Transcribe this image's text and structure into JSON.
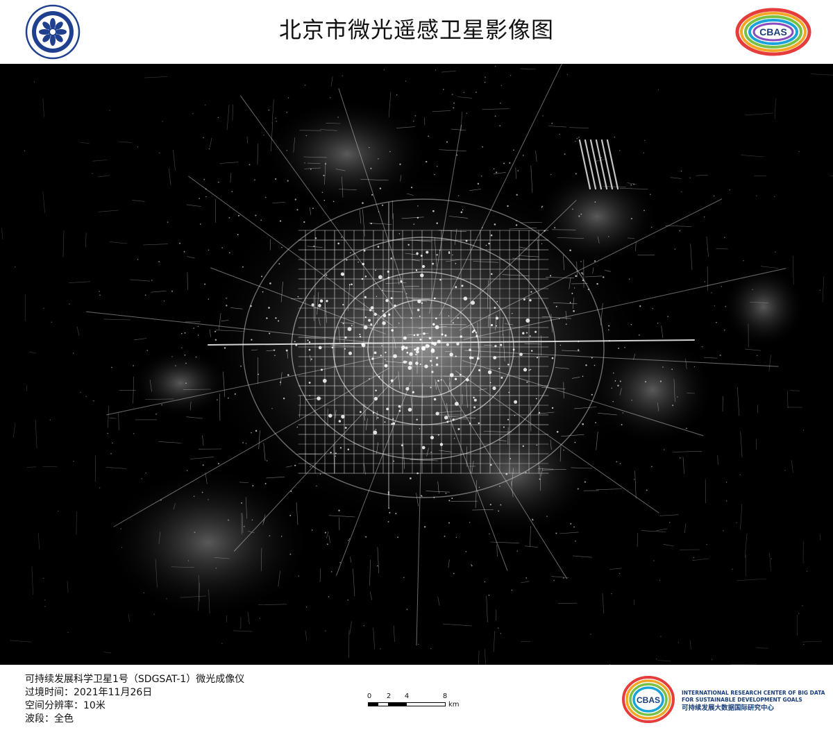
{
  "header": {
    "title": "北京市微光遥感卫星影像图",
    "cbas_logo_text": "CBAS"
  },
  "map": {
    "background": "#000000",
    "light_color": "#ffffff"
  },
  "footer": {
    "info": [
      "可持续发展科学卫星1号（SDGSAT-1）微光成像仪",
      "过境时间：2021年11月26日",
      "空间分辨率：10米",
      "波段：全色"
    ],
    "scale": {
      "ticks": [
        "0",
        "2",
        "4",
        "8"
      ],
      "unit": "km"
    },
    "org": {
      "logo_text": "CBAS",
      "en_line1": "INTERNATIONAL RESEARCH CENTER OF BIG DATA",
      "en_line2": "FOR SUSTAINABLE DEVELOPMENT GOALS",
      "cn": "可持续发展大数据国际研究中心"
    }
  }
}
